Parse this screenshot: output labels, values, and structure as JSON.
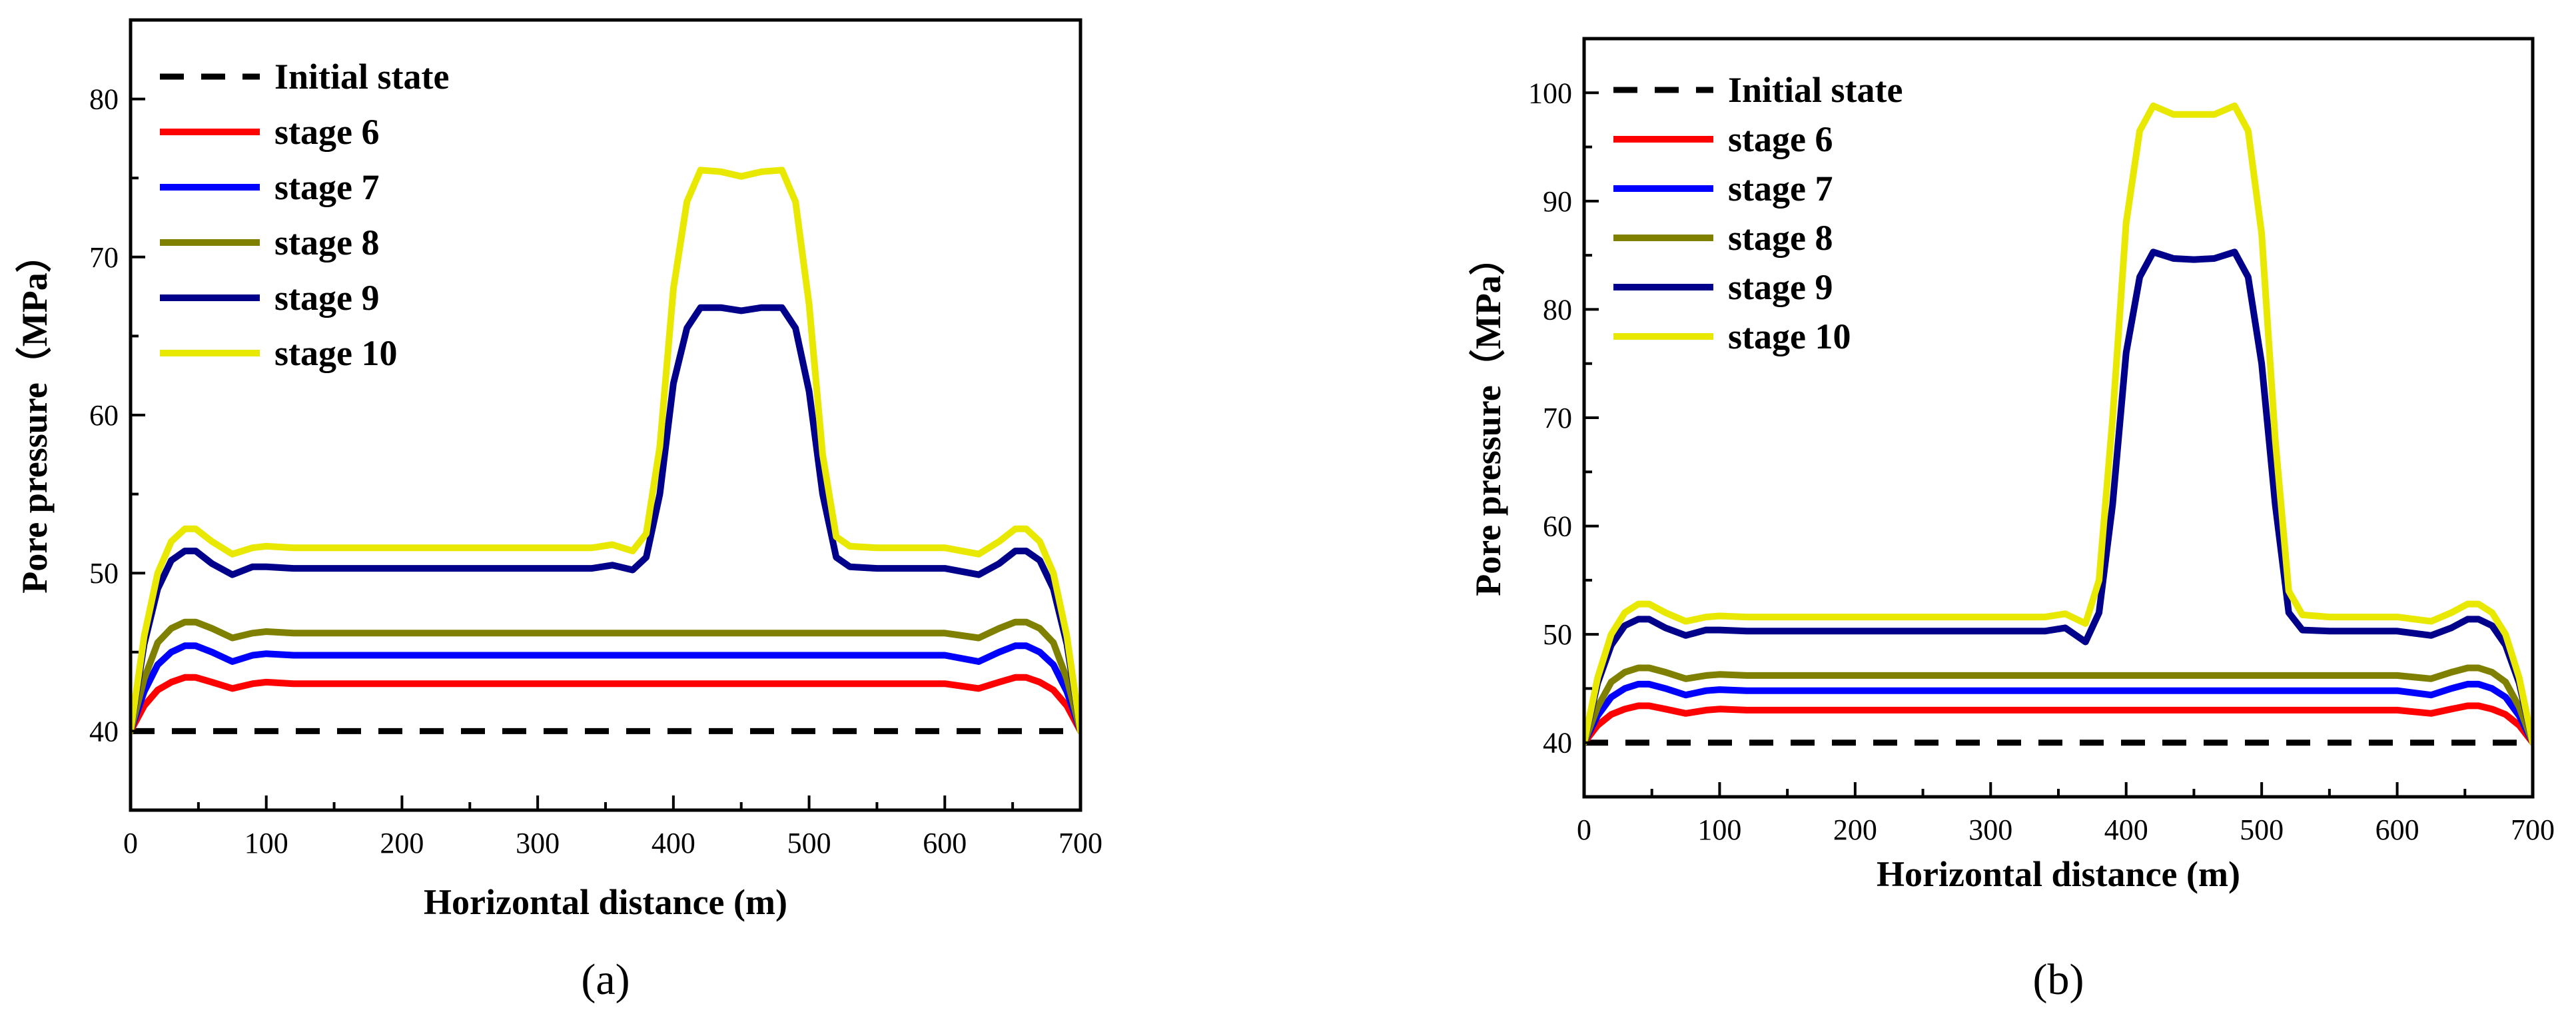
{
  "chart_data": [
    {
      "type": "line",
      "panel_label": "(a)",
      "xlabel": "Horizontal distance (m)",
      "ylabel": "Pore pressure（MPa）",
      "xlim": [
        0,
        700
      ],
      "ylim": [
        35,
        85
      ],
      "xticks": [
        0,
        100,
        200,
        300,
        400,
        500,
        600,
        700
      ],
      "yticks": [
        40,
        50,
        60,
        70,
        80
      ],
      "x": [
        0,
        10,
        20,
        30,
        40,
        48,
        60,
        75,
        90,
        100,
        120,
        150,
        200,
        250,
        300,
        340,
        355,
        370,
        380,
        390,
        400,
        410,
        420,
        435,
        450,
        465,
        480,
        490,
        500,
        510,
        520,
        530,
        550,
        600,
        625,
        640,
        652,
        660,
        670,
        680,
        690,
        700
      ],
      "legend_position": "top-left",
      "series": [
        {
          "name": "Initial state",
          "color": "#000000",
          "dashed": true,
          "values": [
            40,
            40,
            40,
            40,
            40,
            40,
            40,
            40,
            40,
            40,
            40,
            40,
            40,
            40,
            40,
            40,
            40,
            40,
            40,
            40,
            40,
            40,
            40,
            40,
            40,
            40,
            40,
            40,
            40,
            40,
            40,
            40,
            40,
            40,
            40,
            40,
            40,
            40,
            40,
            40,
            40,
            40
          ]
        },
        {
          "name": "stage 6",
          "color": "#ff0000",
          "dashed": false,
          "values": [
            40,
            41.6,
            42.6,
            43.1,
            43.4,
            43.4,
            43.1,
            42.7,
            43.0,
            43.1,
            43.0,
            43.0,
            43.0,
            43.0,
            43.0,
            43.0,
            43.0,
            43.0,
            43.0,
            43.0,
            43.0,
            43.0,
            43.0,
            43.0,
            43.0,
            43.0,
            43.0,
            43.0,
            43.0,
            43.0,
            43.0,
            43.0,
            43.0,
            43.0,
            42.7,
            43.1,
            43.4,
            43.4,
            43.1,
            42.6,
            41.6,
            40
          ]
        },
        {
          "name": "stage 7",
          "color": "#0000ff",
          "dashed": false,
          "values": [
            40,
            42.5,
            44.2,
            45.0,
            45.4,
            45.4,
            45.0,
            44.4,
            44.8,
            44.9,
            44.8,
            44.8,
            44.8,
            44.8,
            44.8,
            44.8,
            44.8,
            44.8,
            44.8,
            44.8,
            44.8,
            44.8,
            44.8,
            44.8,
            44.8,
            44.8,
            44.8,
            44.8,
            44.8,
            44.8,
            44.8,
            44.8,
            44.8,
            44.8,
            44.4,
            45.0,
            45.4,
            45.4,
            45.0,
            44.2,
            42.5,
            40
          ]
        },
        {
          "name": "stage 8",
          "color": "#808000",
          "dashed": false,
          "values": [
            40,
            43.3,
            45.6,
            46.5,
            46.9,
            46.9,
            46.5,
            45.9,
            46.2,
            46.3,
            46.2,
            46.2,
            46.2,
            46.2,
            46.2,
            46.2,
            46.2,
            46.2,
            46.2,
            46.2,
            46.2,
            46.2,
            46.2,
            46.2,
            46.2,
            46.2,
            46.2,
            46.2,
            46.2,
            46.2,
            46.2,
            46.2,
            46.2,
            46.2,
            45.9,
            46.5,
            46.9,
            46.9,
            46.5,
            45.6,
            43.3,
            40
          ]
        },
        {
          "name": "stage 9",
          "color": "#00008b",
          "dashed": false,
          "values": [
            40,
            45.5,
            49.0,
            50.8,
            51.4,
            51.4,
            50.6,
            49.9,
            50.4,
            50.4,
            50.3,
            50.3,
            50.3,
            50.3,
            50.3,
            50.3,
            50.5,
            50.2,
            51.0,
            55.0,
            62.0,
            65.5,
            66.8,
            66.8,
            66.6,
            66.8,
            66.8,
            65.5,
            61.5,
            55.0,
            51.0,
            50.4,
            50.3,
            50.3,
            49.9,
            50.6,
            51.4,
            51.4,
            50.8,
            49.0,
            45.5,
            40
          ]
        },
        {
          "name": "stage 10",
          "color": "#e8e800",
          "dashed": false,
          "values": [
            40,
            46.0,
            50.0,
            52.0,
            52.8,
            52.8,
            52.0,
            51.2,
            51.6,
            51.7,
            51.6,
            51.6,
            51.6,
            51.6,
            51.6,
            51.6,
            51.8,
            51.4,
            52.5,
            58.0,
            68.0,
            73.5,
            75.5,
            75.4,
            75.1,
            75.4,
            75.5,
            73.5,
            67.0,
            57.5,
            52.3,
            51.7,
            51.6,
            51.6,
            51.2,
            52.0,
            52.8,
            52.8,
            52.0,
            50.0,
            46.0,
            40
          ]
        }
      ]
    },
    {
      "type": "line",
      "panel_label": "(b)",
      "xlabel": "Horizontal distance (m)",
      "ylabel": "Pore pressure（MPa）",
      "xlim": [
        0,
        700
      ],
      "ylim": [
        35,
        105
      ],
      "xticks": [
        0,
        100,
        200,
        300,
        400,
        500,
        600,
        700
      ],
      "yticks": [
        40,
        50,
        60,
        70,
        80,
        90,
        100
      ],
      "x": [
        0,
        10,
        20,
        30,
        40,
        48,
        60,
        75,
        90,
        100,
        120,
        150,
        200,
        250,
        300,
        340,
        355,
        370,
        380,
        390,
        400,
        410,
        420,
        435,
        450,
        465,
        480,
        490,
        500,
        510,
        520,
        530,
        550,
        600,
        625,
        640,
        652,
        660,
        670,
        680,
        690,
        700
      ],
      "legend_position": "top-left",
      "series": [
        {
          "name": "Initial state",
          "color": "#000000",
          "dashed": true,
          "values": [
            40,
            40,
            40,
            40,
            40,
            40,
            40,
            40,
            40,
            40,
            40,
            40,
            40,
            40,
            40,
            40,
            40,
            40,
            40,
            40,
            40,
            40,
            40,
            40,
            40,
            40,
            40,
            40,
            40,
            40,
            40,
            40,
            40,
            40,
            40,
            40,
            40,
            40,
            40,
            40,
            40,
            40
          ]
        },
        {
          "name": "stage 6",
          "color": "#ff0000",
          "dashed": false,
          "values": [
            40,
            41.6,
            42.6,
            43.1,
            43.4,
            43.4,
            43.1,
            42.7,
            43.0,
            43.1,
            43.0,
            43.0,
            43.0,
            43.0,
            43.0,
            43.0,
            43.0,
            43.0,
            43.0,
            43.0,
            43.0,
            43.0,
            43.0,
            43.0,
            43.0,
            43.0,
            43.0,
            43.0,
            43.0,
            43.0,
            43.0,
            43.0,
            43.0,
            43.0,
            42.7,
            43.1,
            43.4,
            43.4,
            43.1,
            42.6,
            41.6,
            40
          ]
        },
        {
          "name": "stage 7",
          "color": "#0000ff",
          "dashed": false,
          "values": [
            40,
            42.5,
            44.2,
            45.0,
            45.4,
            45.4,
            45.0,
            44.4,
            44.8,
            44.9,
            44.8,
            44.8,
            44.8,
            44.8,
            44.8,
            44.8,
            44.8,
            44.8,
            44.8,
            44.8,
            44.8,
            44.8,
            44.8,
            44.8,
            44.8,
            44.8,
            44.8,
            44.8,
            44.8,
            44.8,
            44.8,
            44.8,
            44.8,
            44.8,
            44.4,
            45.0,
            45.4,
            45.4,
            45.0,
            44.2,
            42.5,
            40
          ]
        },
        {
          "name": "stage 8",
          "color": "#808000",
          "dashed": false,
          "values": [
            40,
            43.3,
            45.6,
            46.5,
            46.9,
            46.9,
            46.5,
            45.9,
            46.2,
            46.3,
            46.2,
            46.2,
            46.2,
            46.2,
            46.2,
            46.2,
            46.2,
            46.2,
            46.2,
            46.2,
            46.2,
            46.2,
            46.2,
            46.2,
            46.2,
            46.2,
            46.2,
            46.2,
            46.2,
            46.2,
            46.2,
            46.2,
            46.2,
            46.2,
            45.9,
            46.5,
            46.9,
            46.9,
            46.5,
            45.6,
            43.3,
            40
          ]
        },
        {
          "name": "stage 9",
          "color": "#00008b",
          "dashed": false,
          "values": [
            40,
            45.5,
            49.0,
            50.8,
            51.4,
            51.4,
            50.6,
            49.9,
            50.4,
            50.4,
            50.3,
            50.3,
            50.3,
            50.3,
            50.3,
            50.3,
            50.6,
            49.3,
            52.0,
            62.0,
            76.0,
            83.0,
            85.3,
            84.7,
            84.6,
            84.7,
            85.3,
            83.0,
            75.0,
            62.0,
            52.0,
            50.4,
            50.3,
            50.3,
            49.9,
            50.6,
            51.4,
            51.4,
            50.8,
            49.0,
            45.5,
            40
          ]
        },
        {
          "name": "stage 10",
          "color": "#e8e800",
          "dashed": false,
          "values": [
            40,
            46.0,
            50.0,
            52.0,
            52.8,
            52.8,
            52.0,
            51.2,
            51.6,
            51.7,
            51.6,
            51.6,
            51.6,
            51.6,
            51.6,
            51.6,
            51.9,
            51.0,
            55.0,
            70.0,
            88.0,
            96.5,
            98.8,
            98.0,
            98.0,
            98.0,
            98.8,
            96.5,
            87.0,
            68.0,
            54.0,
            51.8,
            51.6,
            51.6,
            51.2,
            52.0,
            52.8,
            52.8,
            52.0,
            50.0,
            46.0,
            40
          ]
        }
      ]
    }
  ]
}
